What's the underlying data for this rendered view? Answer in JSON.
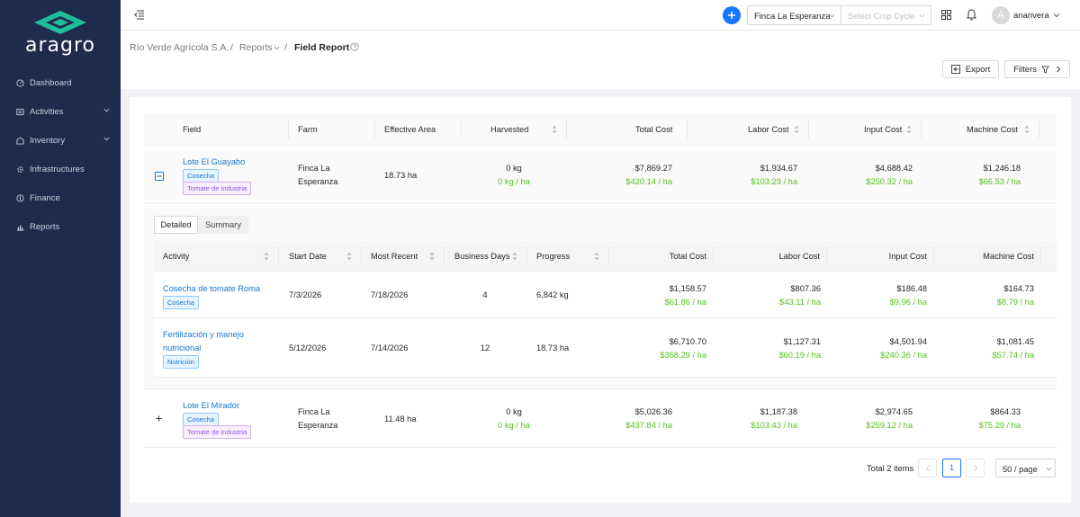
{
  "app": {
    "logo_text": "aragro",
    "brand_color": "#1dbf9a"
  },
  "sidebar": {
    "items": [
      {
        "label": "Dashboard",
        "icon": "dashboard-icon",
        "has_children": false
      },
      {
        "label": "Activities",
        "icon": "activities-icon",
        "has_children": true
      },
      {
        "label": "Inventory",
        "icon": "inventory-icon",
        "has_children": true
      },
      {
        "label": "Infrastructures",
        "icon": "infrastructures-icon",
        "has_children": false
      },
      {
        "label": "Finance",
        "icon": "finance-icon",
        "has_children": false
      },
      {
        "label": "Reports",
        "icon": "reports-icon",
        "has_children": false
      }
    ]
  },
  "topbar": {
    "farm_select": "Finca La Esperanza",
    "crop_cycle_placeholder": "Select Crop Cycle",
    "avatar_initial": "A",
    "username": "anarivera"
  },
  "breadcrumb": {
    "company": "Río Verde Agrícola S.A.",
    "reports": "Reports",
    "current": "Field Report"
  },
  "actions": {
    "export": "Export",
    "filters": "Filters"
  },
  "table": {
    "columns": [
      "Field",
      "Farm",
      "Effective Area",
      "Harvested",
      "Total Cost",
      "Labor Cost",
      "Input Cost",
      "Machine Cost"
    ],
    "rows": [
      {
        "field": "Lote El Guayabo",
        "tags": [
          "Cosecha",
          "Tomate de industria"
        ],
        "farm_line1": "Finca La",
        "farm_line2": "Esperanza",
        "area": "18.73 ha",
        "harvested": "0 kg",
        "harvested_ha": "0 kg / ha",
        "total": "$7,869.27",
        "total_ha": "$420.14 / ha",
        "labor": "$1,934.67",
        "labor_ha": "$103.29 / ha",
        "input": "$4,688.42",
        "input_ha": "$250.32 / ha",
        "machine": "$1,246.18",
        "machine_ha": "$66.53 / ha"
      },
      {
        "field": "Lote El Mirador",
        "tags": [
          "Cosecha",
          "Tomate de industria"
        ],
        "farm_line1": "Finca La",
        "farm_line2": "Esperanza",
        "area": "11.48 ha",
        "harvested": "0 kg",
        "harvested_ha": "0 kg / ha",
        "total": "$5,026.36",
        "total_ha": "$437.84 / ha",
        "labor": "$1,187.38",
        "labor_ha": "$103.43 / ha",
        "input": "$2,974.65",
        "input_ha": "$259.12 / ha",
        "machine": "$864.33",
        "machine_ha": "$75.29 / ha"
      }
    ]
  },
  "detail": {
    "tabs": [
      "Detailed",
      "Summary"
    ],
    "columns": [
      "Activity",
      "Start Date",
      "Most Recent",
      "Business Days",
      "Progress",
      "Total Cost",
      "Labor Cost",
      "Input Cost",
      "Machine Cost"
    ],
    "rows": [
      {
        "activity_line1": "Cosecha de tomate Roma",
        "activity_line2": "",
        "tag": "Cosecha",
        "start": "7/3/2026",
        "recent": "7/18/2026",
        "days": "4",
        "progress": "6,842 kg",
        "total": "$1,158.57",
        "total_ha": "$61.86 / ha",
        "labor": "$807.36",
        "labor_ha": "$43.11 / ha",
        "input": "$186.48",
        "input_ha": "$9.96 / ha",
        "machine": "$164.73",
        "machine_ha": "$8.79 / ha"
      },
      {
        "activity_line1": "Fertilización y manejo",
        "activity_line2": "nutricional",
        "tag": "Nutrición",
        "start": "5/12/2026",
        "recent": "7/14/2026",
        "days": "12",
        "progress": "18.73 ha",
        "total": "$6,710.70",
        "total_ha": "$358.29 / ha",
        "labor": "$1,127.31",
        "labor_ha": "$60.19 / ha",
        "input": "$4,501.94",
        "input_ha": "$240.36 / ha",
        "machine": "$1,081.45",
        "machine_ha": "$57.74 / ha"
      }
    ]
  },
  "pagination": {
    "total": "Total 2 items",
    "page": "1",
    "page_size": "50 / page"
  }
}
